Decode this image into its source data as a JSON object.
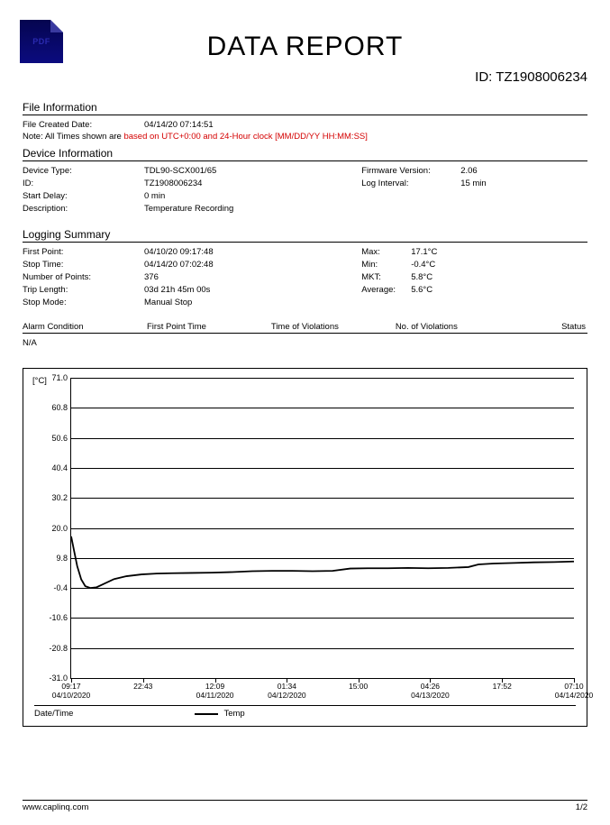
{
  "doc": {
    "title": "DATA REPORT",
    "id_label": "ID:",
    "id_value": "TZ1908006234",
    "footer_left": "www.caplinq.com",
    "footer_right": "1/2",
    "pdf_icon_label": "PDF"
  },
  "file_info": {
    "header": "File Information",
    "created_label": "File Created Date:",
    "created_value": "04/14/20 07:14:51",
    "note_prefix": "Note: All Times shown are",
    "note_rest": " based on UTC+0:00 and 24-Hour clock  [MM/DD/YY HH:MM:SS]"
  },
  "device_info": {
    "header": "Device Information",
    "rows_left": [
      {
        "k": "Device Type:",
        "v": "TDL90-SCX001/65"
      },
      {
        "k": "ID:",
        "v": "TZ1908006234"
      },
      {
        "k": "Start Delay:",
        "v": "0 min"
      },
      {
        "k": "Description:",
        "v": "Temperature Recording"
      }
    ],
    "rows_right": [
      {
        "k": "Firmware Version:",
        "v": "2.06"
      },
      {
        "k": "",
        "v": ""
      },
      {
        "k": "Log Interval:",
        "v": "15 min"
      }
    ]
  },
  "logging": {
    "header": "Logging Summary",
    "rows_left": [
      {
        "k": "First Point:",
        "v": "04/10/20 09:17:48"
      },
      {
        "k": "Stop Time:",
        "v": "04/14/20 07:02:48"
      },
      {
        "k": "Number of Points:",
        "v": "376"
      },
      {
        "k": "Trip Length:",
        "v": "03d 21h 45m 00s"
      },
      {
        "k": "Stop Mode:",
        "v": "Manual Stop"
      }
    ],
    "stats": [
      {
        "k": "Max:",
        "v": "17.1°C"
      },
      {
        "k": "Min:",
        "v": "-0.4°C"
      },
      {
        "k": "MKT:",
        "v": "5.8°C"
      },
      {
        "k": "Average:",
        "v": "5.6°C"
      }
    ]
  },
  "alarm": {
    "cols": [
      "Alarm Condition",
      "First Point Time",
      "Time of Violations",
      "No. of Violations",
      "Status"
    ],
    "na": "N/A"
  },
  "chart": {
    "y_unit": "[°C]",
    "y_min": -31.0,
    "y_max": 71.0,
    "y_ticks": [
      71.0,
      60.8,
      50.6,
      40.4,
      30.2,
      20.0,
      9.8,
      -0.4,
      -10.6,
      -20.8,
      -31.0
    ],
    "x_ticks": [
      {
        "pos": 0.0,
        "t": "09:17",
        "d": "04/10/2020"
      },
      {
        "pos": 0.143,
        "t": "22:43",
        "d": ""
      },
      {
        "pos": 0.286,
        "t": "12:09",
        "d": "04/11/2020"
      },
      {
        "pos": 0.429,
        "t": "01:34",
        "d": "04/12/2020"
      },
      {
        "pos": 0.571,
        "t": "15:00",
        "d": ""
      },
      {
        "pos": 0.714,
        "t": "04:26",
        "d": "04/13/2020"
      },
      {
        "pos": 0.857,
        "t": "17:52",
        "d": ""
      },
      {
        "pos": 1.0,
        "t": "07:10",
        "d": "04/14/2020"
      }
    ],
    "legend_label": "Temp",
    "footer_label": "Date/Time",
    "line_color": "#000000",
    "grid_color": "#000000",
    "series": [
      {
        "x": 0.0,
        "y": 17.1
      },
      {
        "x": 0.006,
        "y": 12.0
      },
      {
        "x": 0.012,
        "y": 7.0
      },
      {
        "x": 0.02,
        "y": 2.5
      },
      {
        "x": 0.028,
        "y": 0.2
      },
      {
        "x": 0.038,
        "y": -0.4
      },
      {
        "x": 0.05,
        "y": -0.2
      },
      {
        "x": 0.065,
        "y": 1.0
      },
      {
        "x": 0.085,
        "y": 2.6
      },
      {
        "x": 0.11,
        "y": 3.6
      },
      {
        "x": 0.14,
        "y": 4.2
      },
      {
        "x": 0.17,
        "y": 4.5
      },
      {
        "x": 0.2,
        "y": 4.6
      },
      {
        "x": 0.24,
        "y": 4.7
      },
      {
        "x": 0.28,
        "y": 4.8
      },
      {
        "x": 0.32,
        "y": 5.0
      },
      {
        "x": 0.36,
        "y": 5.3
      },
      {
        "x": 0.4,
        "y": 5.4
      },
      {
        "x": 0.44,
        "y": 5.4
      },
      {
        "x": 0.48,
        "y": 5.3
      },
      {
        "x": 0.52,
        "y": 5.4
      },
      {
        "x": 0.555,
        "y": 6.2
      },
      {
        "x": 0.59,
        "y": 6.3
      },
      {
        "x": 0.63,
        "y": 6.3
      },
      {
        "x": 0.67,
        "y": 6.4
      },
      {
        "x": 0.71,
        "y": 6.3
      },
      {
        "x": 0.75,
        "y": 6.4
      },
      {
        "x": 0.79,
        "y": 6.7
      },
      {
        "x": 0.81,
        "y": 7.6
      },
      {
        "x": 0.84,
        "y": 7.9
      },
      {
        "x": 0.88,
        "y": 8.1
      },
      {
        "x": 0.92,
        "y": 8.3
      },
      {
        "x": 0.96,
        "y": 8.4
      },
      {
        "x": 1.0,
        "y": 8.6
      }
    ]
  }
}
